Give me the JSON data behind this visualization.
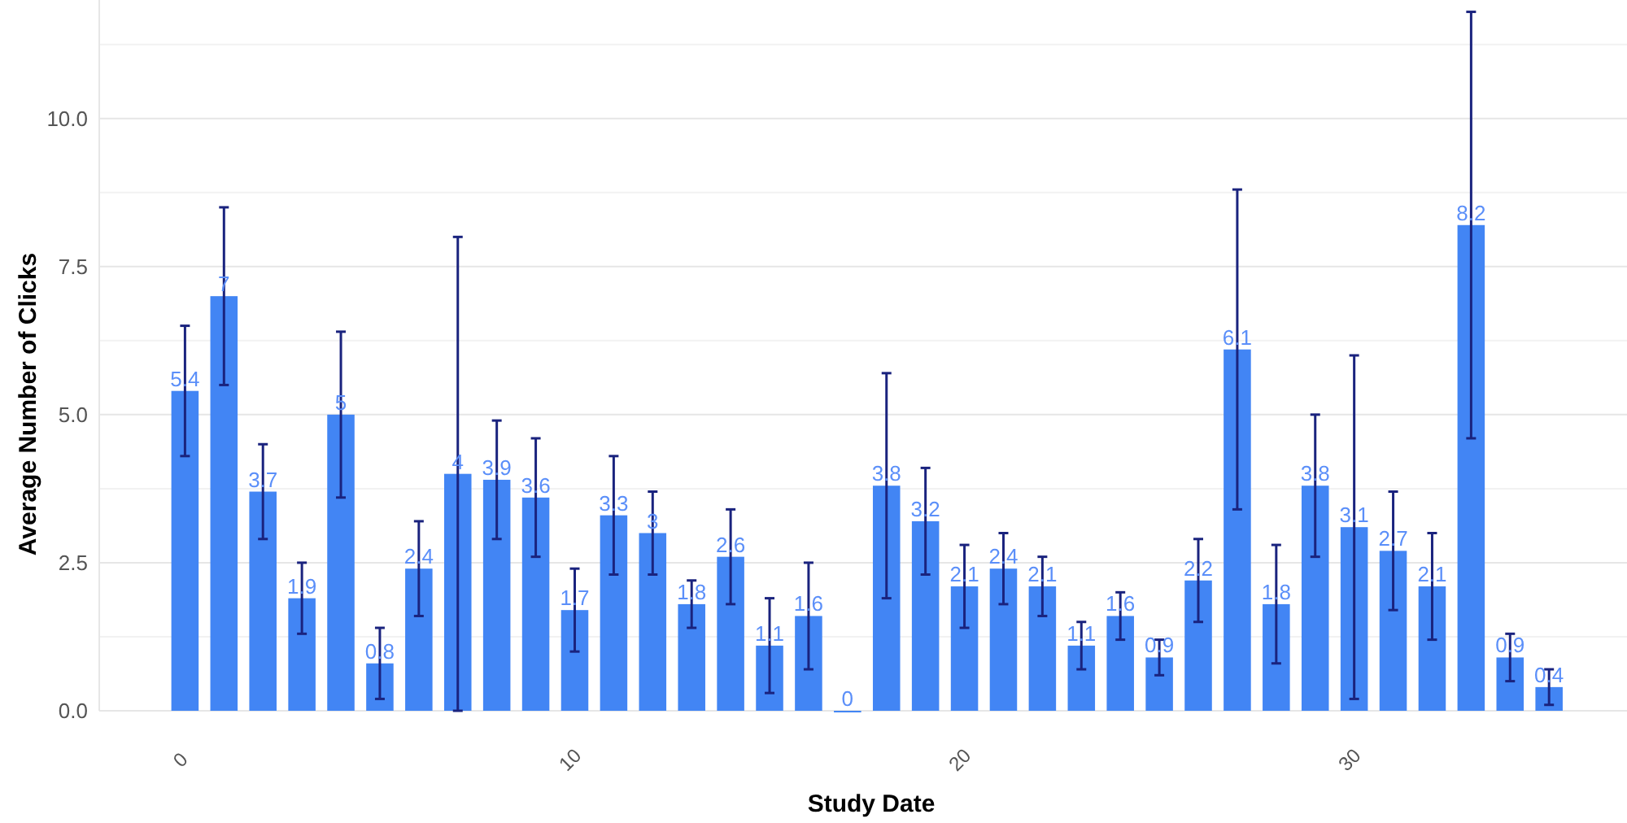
{
  "chart_data": {
    "type": "bar",
    "xlabel": "Study Date",
    "ylabel": "Average Number of Clicks",
    "x": [
      0,
      1,
      2,
      3,
      4,
      5,
      6,
      7,
      8,
      9,
      10,
      11,
      12,
      13,
      14,
      15,
      16,
      17,
      18,
      19,
      20,
      21,
      22,
      23,
      24,
      25,
      26,
      27,
      28,
      29,
      30,
      31,
      32,
      33,
      34,
      35
    ],
    "values": [
      5.4,
      7,
      3.7,
      1.9,
      5,
      0.8,
      2.4,
      4,
      3.9,
      3.6,
      1.7,
      3.3,
      3,
      1.8,
      2.6,
      1.1,
      1.6,
      0,
      3.8,
      3.2,
      2.1,
      2.4,
      2.1,
      1.1,
      1.6,
      0.9,
      2.2,
      6.1,
      1.8,
      3.8,
      3.1,
      2.7,
      2.1,
      8.2,
      0.9,
      0.4
    ],
    "errors": [
      1.1,
      1.5,
      0.8,
      0.6,
      1.4,
      0.6,
      0.8,
      4,
      1,
      1,
      0.7,
      1,
      0.7,
      0.4,
      0.8,
      0.8,
      0.9,
      null,
      1.9,
      0.9,
      0.7,
      0.6,
      0.5,
      0.4,
      0.4,
      0.3,
      0.7,
      2.7,
      1,
      1.2,
      2.9,
      1,
      0.9,
      3.6,
      0.4,
      0.3
    ],
    "color": "#4285f4",
    "data_labels": true,
    "xlim": [
      -2.2,
      37
    ],
    "xticks": [
      0,
      10,
      20,
      30
    ],
    "ylim": [
      0,
      12
    ],
    "yticks": [
      {
        "value": 0,
        "label": "0.0"
      },
      {
        "value": 1.25,
        "label": null
      },
      {
        "value": 2.5,
        "label": "2.5"
      },
      {
        "value": 3.75,
        "label": null
      },
      {
        "value": 5,
        "label": "5.0"
      },
      {
        "value": 6.25,
        "label": null
      },
      {
        "value": 7.5,
        "label": "7.5"
      },
      {
        "value": 8.75,
        "label": null
      },
      {
        "value": 10,
        "label": "10.0"
      },
      {
        "value": 11.25,
        "label": null
      }
    ],
    "grid": "y"
  }
}
